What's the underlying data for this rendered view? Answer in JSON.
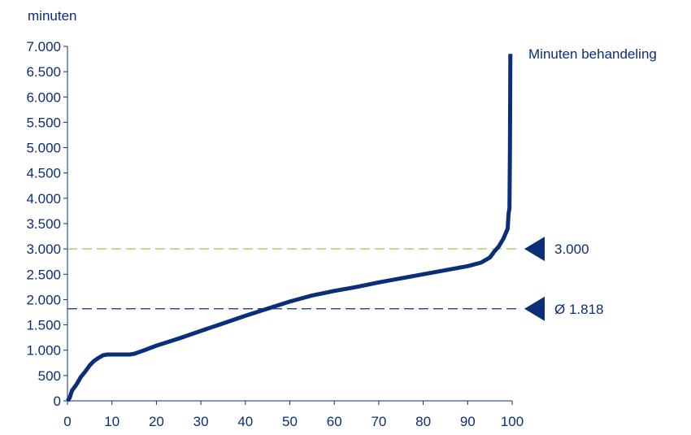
{
  "chart_data": {
    "type": "line",
    "ylabel": "minuten",
    "xlabel": "",
    "xlim": [
      0,
      100
    ],
    "ylim": [
      0,
      7000
    ],
    "x_ticks": [
      0,
      10,
      20,
      30,
      40,
      50,
      60,
      70,
      80,
      90,
      100
    ],
    "y_ticks": [
      0,
      500,
      1000,
      1500,
      2000,
      2500,
      3000,
      3500,
      4000,
      4500,
      5000,
      5500,
      6000,
      6500,
      7000
    ],
    "y_tick_labels": [
      "0",
      "500",
      "1.000",
      "1.500",
      "2.000",
      "2.500",
      "3.000",
      "3.500",
      "4.000",
      "4.500",
      "5.000",
      "5.500",
      "6.000",
      "6.500",
      "7.000"
    ],
    "grid": false,
    "series": [
      {
        "name": "Minuten behandeling",
        "color": "#0b2e7a",
        "x": [
          0,
          0.5,
          1,
          2,
          3,
          4,
          5,
          6,
          7,
          8,
          9,
          10,
          12,
          14,
          15,
          17,
          20,
          25,
          30,
          35,
          40,
          45,
          50,
          55,
          60,
          65,
          70,
          75,
          80,
          85,
          90,
          93,
          95,
          96,
          97,
          98,
          99,
          99.2,
          99.4,
          99.5,
          99.6
        ],
        "y": [
          0,
          60,
          200,
          320,
          470,
          580,
          700,
          790,
          850,
          900,
          915,
          915,
          915,
          915,
          930,
          990,
          1090,
          1230,
          1380,
          1530,
          1680,
          1820,
          1960,
          2080,
          2170,
          2250,
          2340,
          2420,
          2500,
          2580,
          2660,
          2730,
          2830,
          2950,
          3050,
          3200,
          3400,
          3700,
          3800,
          5000,
          6850
        ]
      }
    ],
    "reference_lines": [
      {
        "value": 3000,
        "label": "3.000",
        "color": "#99cc33",
        "style": "dashed"
      },
      {
        "value": 1818,
        "label": "Ø 1.818",
        "color": "#0b2e7a",
        "style": "dashed"
      }
    ]
  }
}
